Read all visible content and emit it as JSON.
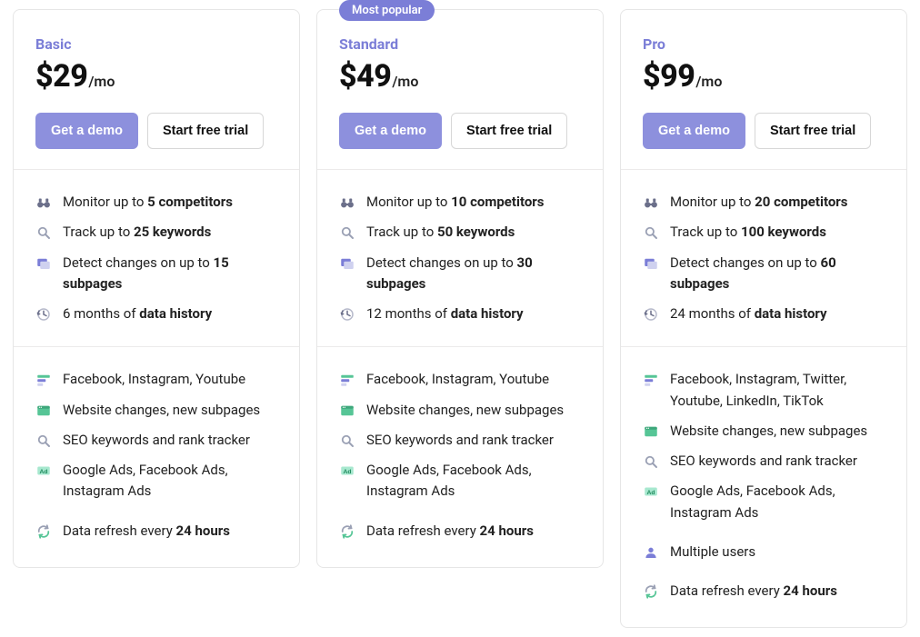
{
  "colors": {
    "accent": "#7b7ed7",
    "primary_btn": "#8d90dd",
    "border": "#e6e6e6",
    "text": "#1a1a1a"
  },
  "buttons": {
    "demo": "Get a demo",
    "trial": "Start free trial"
  },
  "badge": "Most popular",
  "plans": [
    {
      "name": "Basic",
      "price": "$29",
      "period": "/mo",
      "has_badge": false,
      "limits": [
        {
          "icon": "binoculars",
          "pre": "Monitor up to ",
          "bold": "5 competitors"
        },
        {
          "icon": "search",
          "pre": "Track up to ",
          "bold": "25 keywords"
        },
        {
          "icon": "pages",
          "pre": "Detect changes on up to ",
          "bold": "15 subpages"
        },
        {
          "icon": "history",
          "pre": "6 months of ",
          "bold": "data history"
        }
      ],
      "features": [
        {
          "icon": "social",
          "text": "Facebook, Instagram, Youtube"
        },
        {
          "icon": "website",
          "text": "Website changes, new subpages"
        },
        {
          "icon": "seo",
          "text": "SEO keywords and rank tracker"
        },
        {
          "icon": "ads",
          "text": "Google Ads, Facebook Ads, Instagram Ads"
        }
      ],
      "extras": [],
      "refresh": {
        "pre": "Data refresh every ",
        "bold": "24 hours"
      }
    },
    {
      "name": "Standard",
      "price": "$49",
      "period": "/mo",
      "has_badge": true,
      "limits": [
        {
          "icon": "binoculars",
          "pre": "Monitor up to ",
          "bold": "10 competitors"
        },
        {
          "icon": "search",
          "pre": "Track up to ",
          "bold": "50 keywords"
        },
        {
          "icon": "pages",
          "pre": "Detect changes on up to ",
          "bold": "30 subpages"
        },
        {
          "icon": "history",
          "pre": "12 months of ",
          "bold": "data history"
        }
      ],
      "features": [
        {
          "icon": "social",
          "text": "Facebook, Instagram, Youtube"
        },
        {
          "icon": "website",
          "text": "Website changes, new subpages"
        },
        {
          "icon": "seo",
          "text": "SEO keywords and rank tracker"
        },
        {
          "icon": "ads",
          "text": "Google Ads, Facebook Ads, Instagram Ads"
        }
      ],
      "extras": [],
      "refresh": {
        "pre": "Data refresh every ",
        "bold": "24 hours"
      }
    },
    {
      "name": "Pro",
      "price": "$99",
      "period": "/mo",
      "has_badge": false,
      "limits": [
        {
          "icon": "binoculars",
          "pre": "Monitor up to ",
          "bold": "20 competitors"
        },
        {
          "icon": "search",
          "pre": "Track up to ",
          "bold": "100 keywords"
        },
        {
          "icon": "pages",
          "pre": "Detect changes on up to ",
          "bold": "60 subpages"
        },
        {
          "icon": "history",
          "pre": "24 months of ",
          "bold": "data history"
        }
      ],
      "features": [
        {
          "icon": "social",
          "text": "Facebook, Instagram, Twitter, Youtube, LinkedIn, TikTok"
        },
        {
          "icon": "website",
          "text": "Website changes, new subpages"
        },
        {
          "icon": "seo",
          "text": "SEO keywords and rank tracker"
        },
        {
          "icon": "ads",
          "text": "Google Ads, Facebook Ads, Instagram Ads"
        }
      ],
      "extras": [
        {
          "icon": "user",
          "text": "Multiple users"
        }
      ],
      "refresh": {
        "pre": "Data refresh every ",
        "bold": "24 hours"
      }
    }
  ]
}
